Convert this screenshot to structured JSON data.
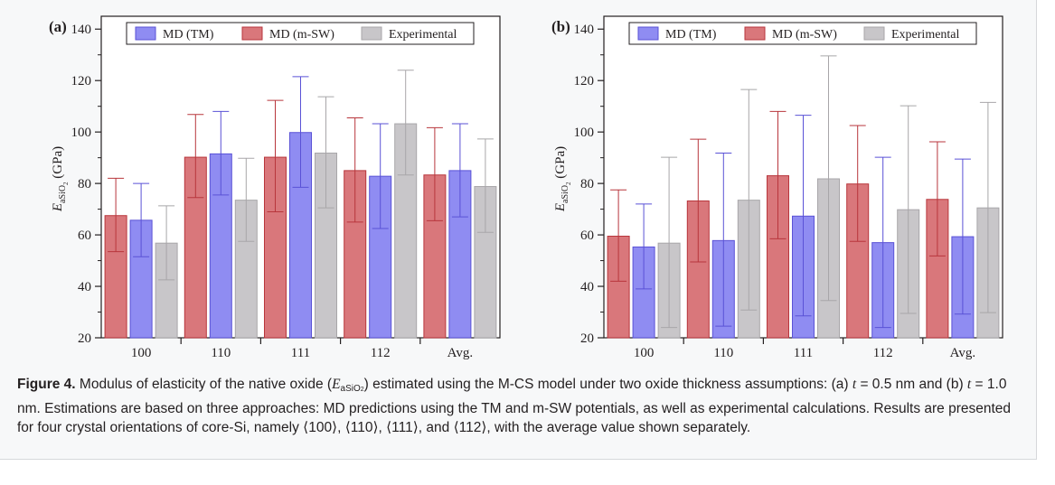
{
  "colors": {
    "md_tm": "#8f8cf2",
    "md_msw": "#d9777b",
    "experimental": "#c8c6c9",
    "md_tm_edge": "#5a52d6",
    "md_msw_edge": "#b8363c",
    "experimental_edge": "#a8a6a9"
  },
  "y_axis": {
    "symbol": "E",
    "subscript": "aSiO",
    "subscript_index": "2",
    "unit": " (GPa)"
  },
  "chart_data": [
    {
      "type": "bar",
      "panel_label": "(a)",
      "categories": [
        "100",
        "110",
        "111",
        "112",
        "Avg."
      ],
      "ylim": [
        20,
        145
      ],
      "yticks": [
        "20",
        "40",
        "60",
        "80",
        "100",
        "120",
        "140"
      ],
      "legend_position": "top",
      "series": [
        {
          "name": "MD (m-SW)",
          "color_key": "md_msw",
          "values": [
            67.5,
            90.2,
            90.2,
            85.0,
            83.3
          ],
          "err_high": [
            82.0,
            106.8,
            112.3,
            105.5,
            101.7
          ],
          "err_low": [
            53.5,
            74.5,
            69.0,
            65.0,
            65.5
          ]
        },
        {
          "name": "MD (TM)",
          "color_key": "md_tm",
          "values": [
            65.7,
            91.5,
            99.8,
            82.8,
            85.0
          ],
          "err_high": [
            80.0,
            108.0,
            121.5,
            103.2,
            103.2
          ],
          "err_low": [
            51.5,
            75.5,
            78.5,
            62.5,
            67.0
          ]
        },
        {
          "name": "Experimental",
          "color_key": "experimental",
          "values": [
            56.8,
            73.5,
            91.8,
            103.2,
            78.8
          ],
          "err_high": [
            71.3,
            89.8,
            113.7,
            124.0,
            97.3
          ],
          "err_low": [
            42.5,
            57.5,
            70.5,
            83.3,
            61.0
          ]
        }
      ]
    },
    {
      "type": "bar",
      "panel_label": "(b)",
      "categories": [
        "100",
        "110",
        "111",
        "112",
        "Avg."
      ],
      "ylim": [
        20,
        145
      ],
      "yticks": [
        "20",
        "40",
        "60",
        "80",
        "100",
        "120",
        "140"
      ],
      "legend_position": "top",
      "series": [
        {
          "name": "MD (m-SW)",
          "color_key": "md_msw",
          "values": [
            59.5,
            73.2,
            83.0,
            79.8,
            73.8
          ],
          "err_high": [
            77.5,
            97.2,
            108.0,
            102.5,
            96.2
          ],
          "err_low": [
            42.0,
            49.5,
            58.5,
            57.5,
            51.8
          ]
        },
        {
          "name": "MD (TM)",
          "color_key": "md_tm",
          "values": [
            55.3,
            57.8,
            67.3,
            57.0,
            59.3
          ],
          "err_high": [
            72.0,
            91.8,
            106.5,
            90.2,
            89.5
          ],
          "err_low": [
            39.0,
            24.5,
            28.5,
            24.0,
            29.2
          ]
        },
        {
          "name": "Experimental",
          "color_key": "experimental",
          "values": [
            56.8,
            73.5,
            81.8,
            69.8,
            70.5
          ],
          "err_high": [
            90.2,
            116.5,
            129.6,
            110.2,
            111.5
          ],
          "err_low": [
            24.0,
            30.8,
            34.5,
            29.5,
            29.8
          ]
        }
      ]
    }
  ],
  "legend": [
    {
      "label": "MD (TM)",
      "color_key": "md_tm"
    },
    {
      "label": "MD (m-SW)",
      "color_key": "md_msw"
    },
    {
      "label": "Experimental",
      "color_key": "experimental"
    }
  ],
  "caption": {
    "figure_label": "Figure 4.",
    "part1": " Modulus of elasticity of the native oxide (",
    "math_E": "E",
    "math_sub": "aSiO",
    "math_sub_idx": "2",
    "part2": ") estimated using the M-CS model under two oxide thickness assumptions: (a) ",
    "math_t1": "t",
    "part3": " = 0.5 nm and (b) ",
    "math_t2": "t",
    "part4": " = 1.0 nm. Estimations are based on three approaches: MD predictions using the TM and m-SW potentials, as well as experimental calculations. Results are presented for four crystal orientations of core-Si, namely ⟨100⟩, ⟨110⟩, ⟨111⟩, and ⟨112⟩, with the average value shown separately."
  }
}
